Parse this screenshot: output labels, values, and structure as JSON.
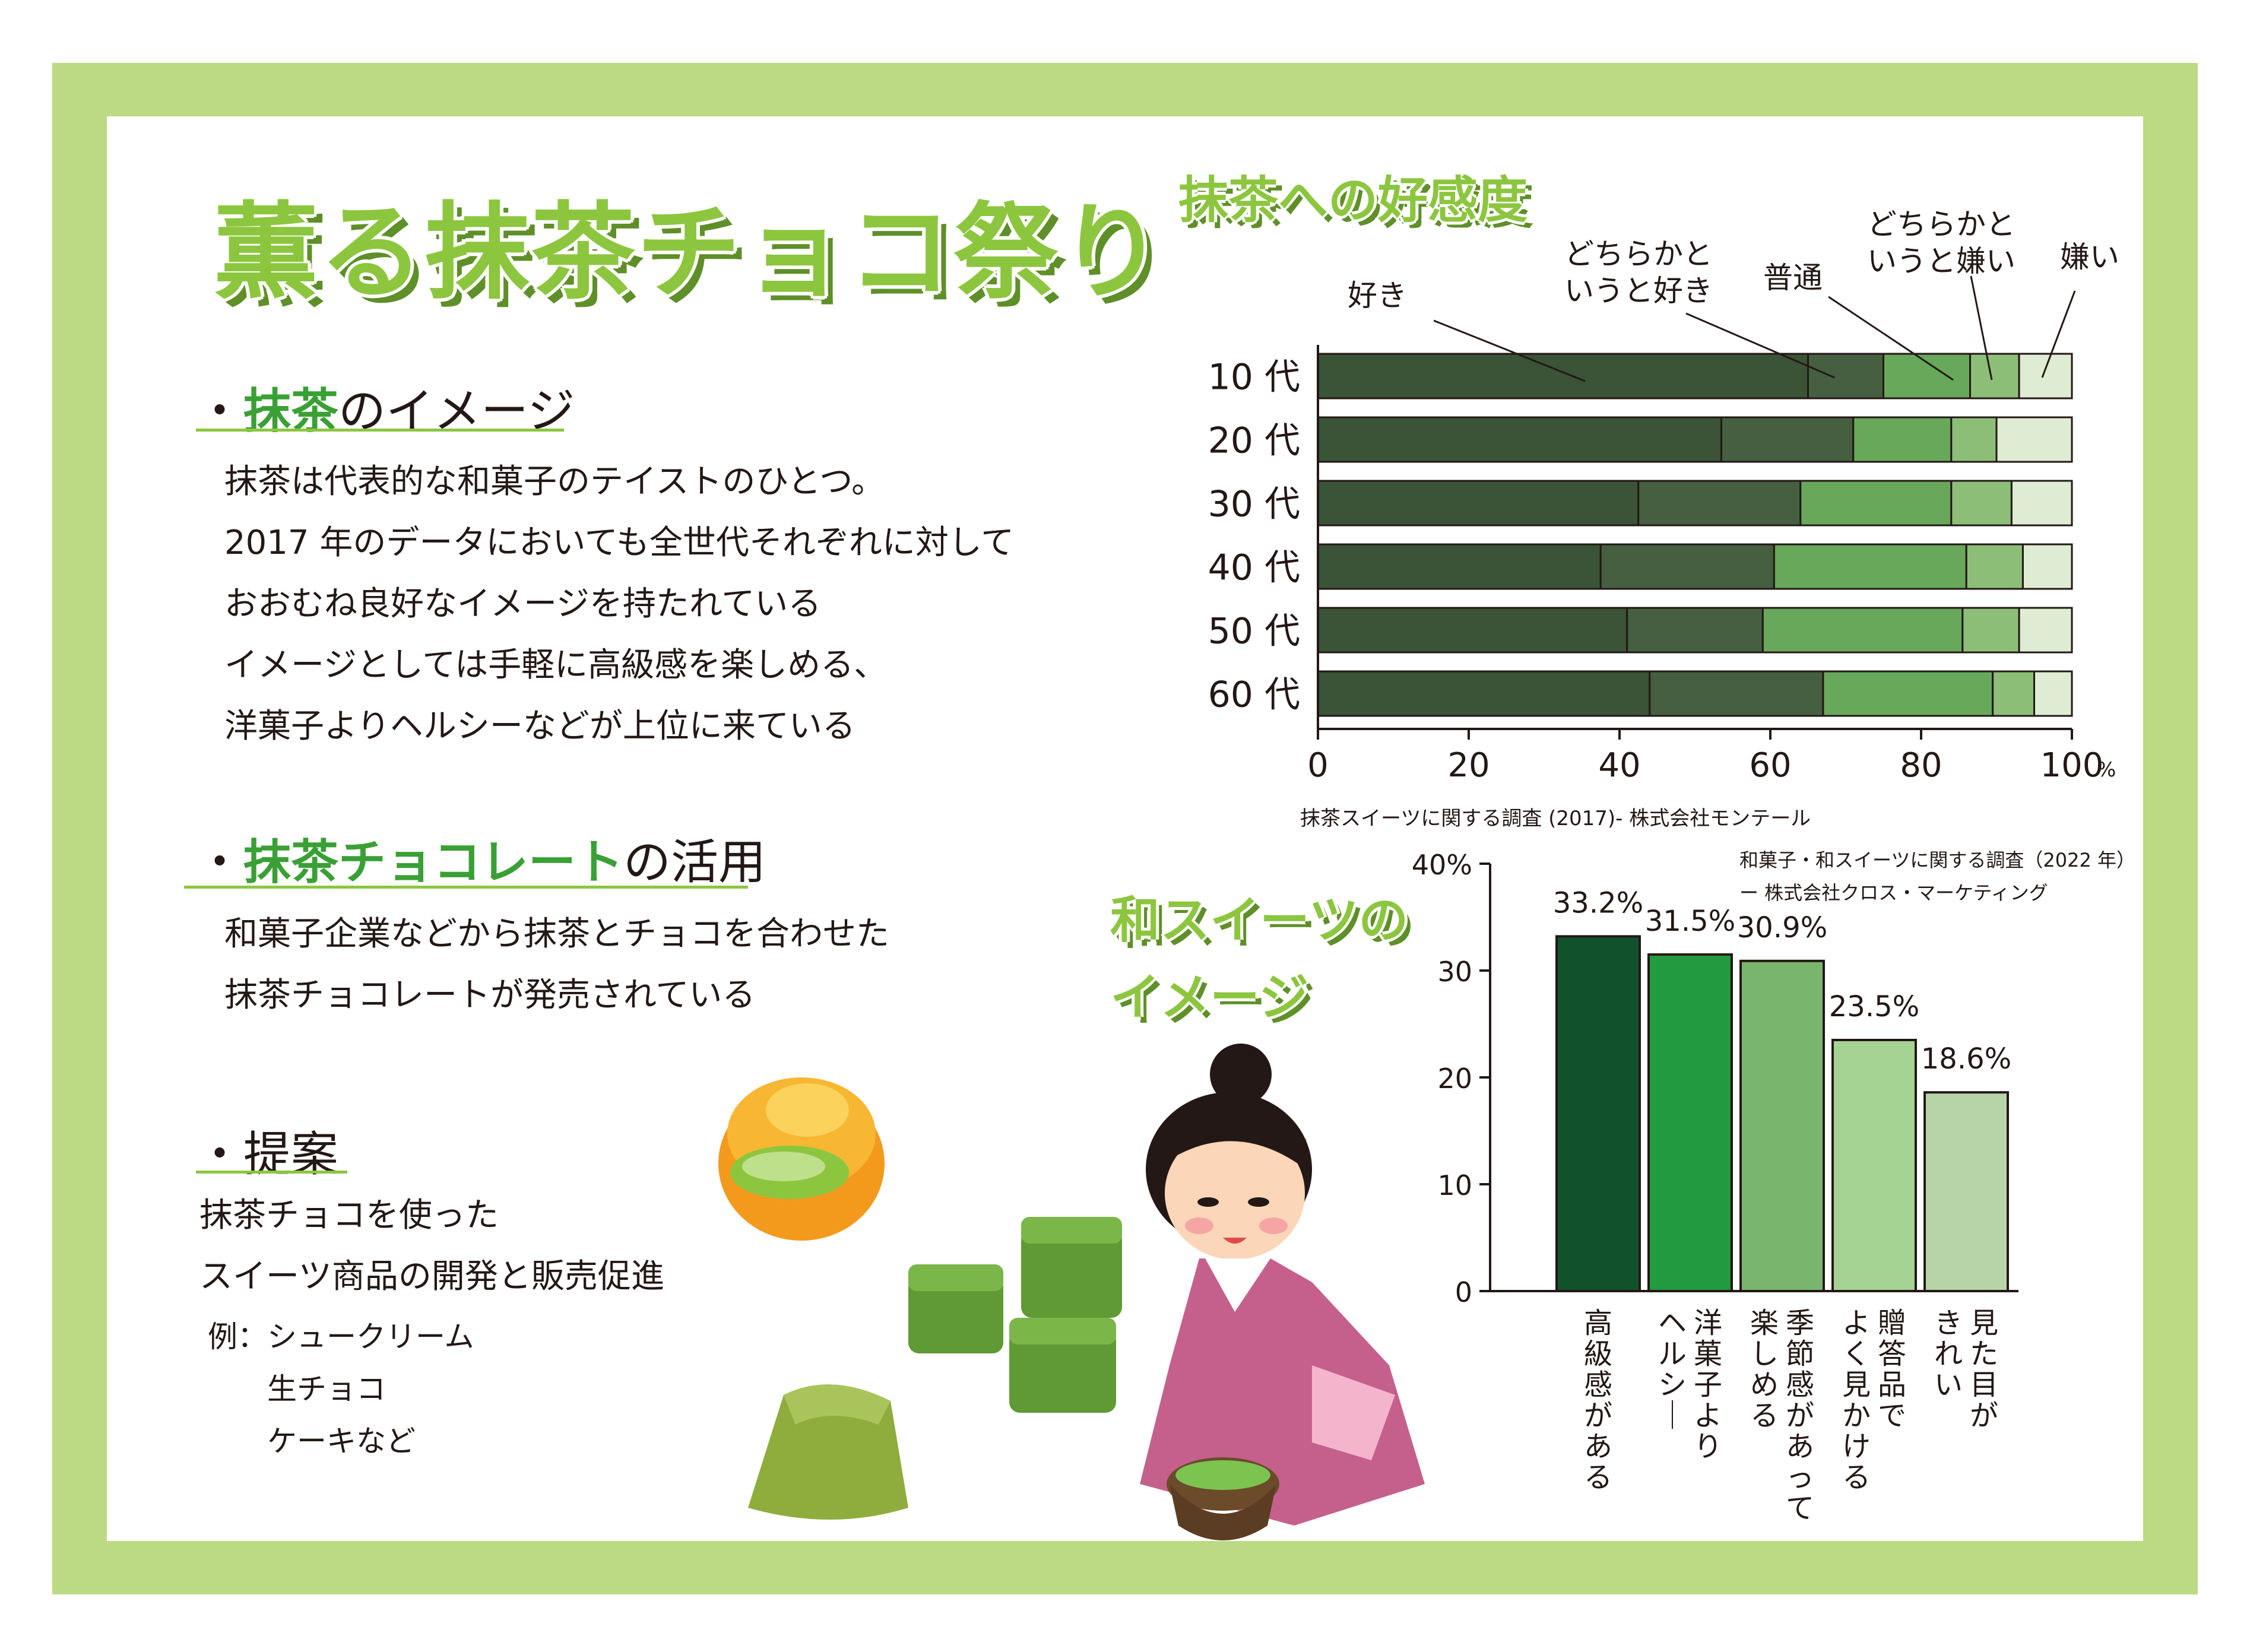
{
  "title": "薫る抹茶チョコ祭り",
  "colors": {
    "frame": "#bcd983",
    "accent": "#8cc63f",
    "highlight": "#3aa035"
  },
  "section1": {
    "bullet": "・",
    "highlight": "抹茶",
    "rest": "のイメージ",
    "lines": [
      "抹茶は代表的な和菓子のテイストのひとつ。",
      "2017 年のデータにおいても全世代それぞれに対して",
      "おおむね良好なイメージを持たれている",
      "イメージとしては手軽に高級感を楽しめる、",
      "洋菓子よりヘルシーなどが上位に来ている"
    ]
  },
  "section2": {
    "bullet": "・",
    "highlight": "抹茶チョコレート",
    "rest": "の活用",
    "lines": [
      "和菓子企業などから抹茶とチョコを合わせた",
      "抹茶チョコレートが発売されている"
    ]
  },
  "section3": {
    "bullet": "・",
    "heading": "提案",
    "lines": [
      "抹茶チョコを使った",
      "スイーツ商品の開発と販売促進"
    ],
    "examples": [
      "例：シュークリーム",
      "生チョコ",
      "ケーキなど"
    ]
  },
  "chart_data": [
    {
      "type": "bar",
      "orientation": "horizontal",
      "stacked": true,
      "title": "抹茶への好感度",
      "categories": [
        "10 代",
        "20 代",
        "30 代",
        "40 代",
        "50 代",
        "60 代"
      ],
      "series": [
        {
          "name": "好き",
          "color": "#3b5336",
          "values": [
            65,
            53.5,
            42.5,
            37.5,
            41,
            44
          ]
        },
        {
          "name": "どちらかと いうと好き",
          "color": "#455f40",
          "values": [
            10,
            17.5,
            21.5,
            23,
            18,
            23
          ]
        },
        {
          "name": "普通",
          "color": "#67a85a",
          "values": [
            11.5,
            13,
            20,
            25.5,
            26.5,
            22.5
          ]
        },
        {
          "name": "どちらかと いうと嫌い",
          "color": "#8dbe78",
          "values": [
            6.5,
            6,
            8,
            7.5,
            7.5,
            5.5
          ]
        },
        {
          "name": "嫌い",
          "color": "#dfecd4",
          "values": [
            7,
            10,
            8,
            6.5,
            7,
            5
          ]
        }
      ],
      "xlim": [
        0,
        100
      ],
      "xticks": [
        "0",
        "20",
        "40",
        "60",
        "80",
        "100"
      ],
      "x_unit": "%",
      "source": "抹茶スイーツに関する調査 (2017)- 株式会社モンテール"
    },
    {
      "type": "bar",
      "orientation": "vertical",
      "title": "和スイーツのイメージ",
      "categories": [
        "高級感がある",
        "洋菓子より ヘルシー",
        "季節感があって 楽しめる",
        "贈答品で よく見かける",
        "見た目が きれい"
      ],
      "values": [
        33.2,
        31.5,
        30.9,
        23.5,
        18.6
      ],
      "value_labels": [
        "33.2%",
        "31.5%",
        "30.9%",
        "23.5%",
        "18.6%"
      ],
      "colors": [
        "#11522c",
        "#229a3f",
        "#79b56d",
        "#a5d394",
        "#b7d4a9"
      ],
      "ylim": [
        0,
        40
      ],
      "yticks": [
        "0",
        "10",
        "20",
        "30",
        "40%"
      ],
      "source_lines": [
        "和菓子・和スイーツに関する調査（2022 年）",
        "ー 株式会社クロス・マーケティング"
      ]
    }
  ]
}
